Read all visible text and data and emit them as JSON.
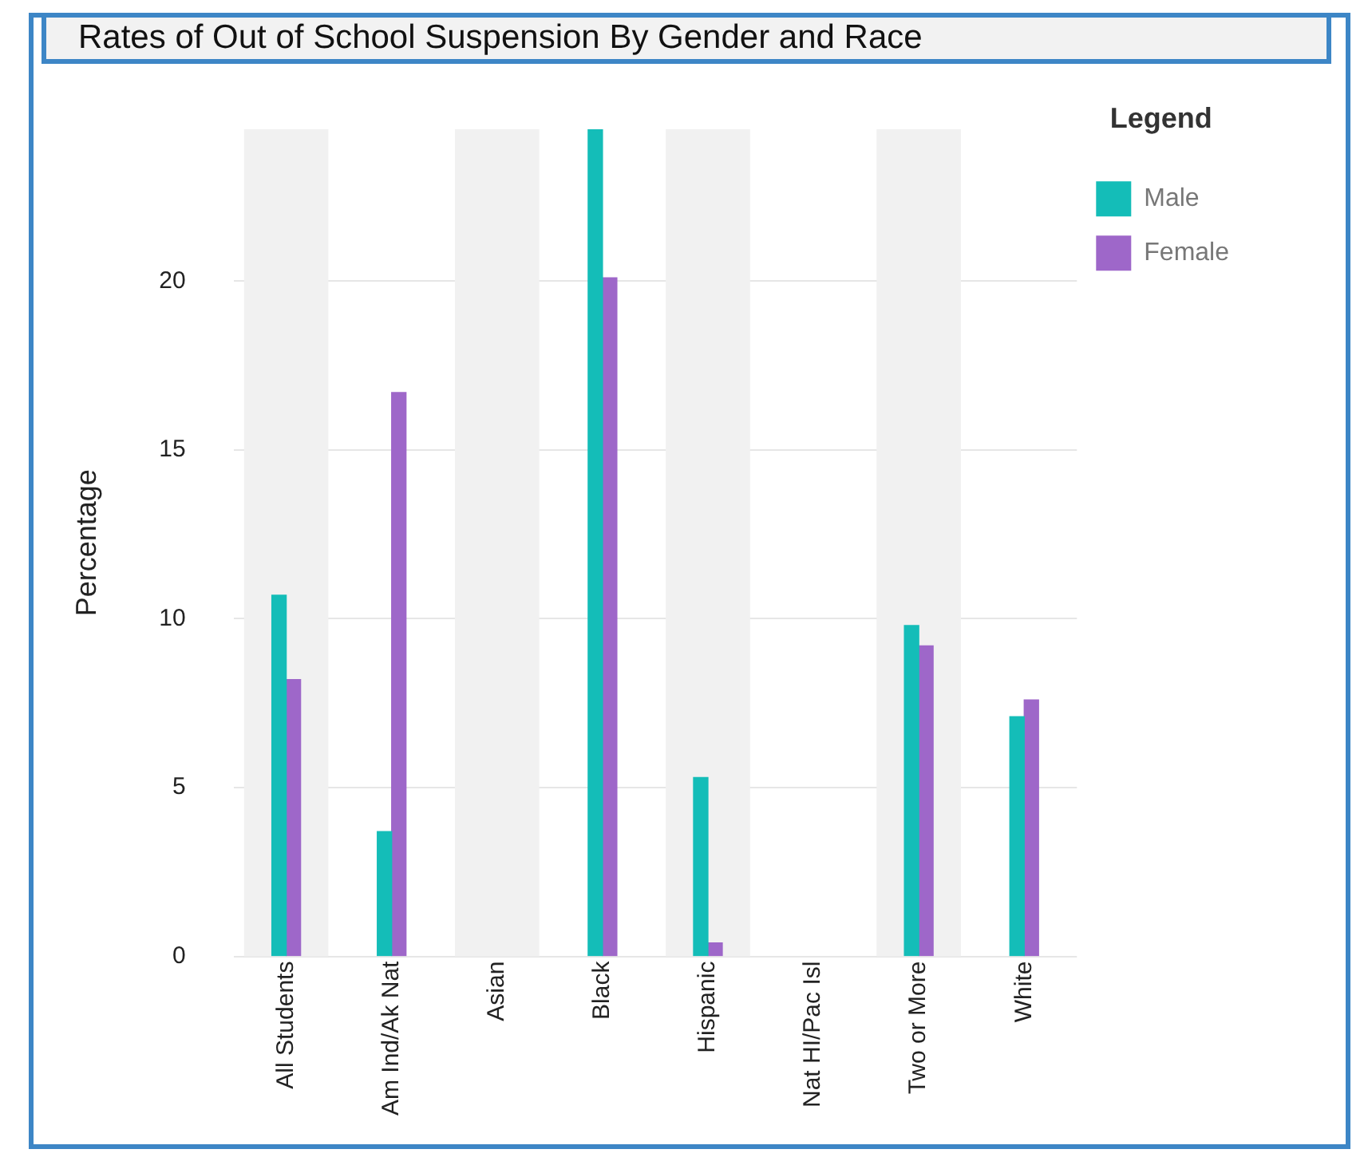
{
  "chart_data": {
    "type": "bar",
    "title": "Rates of Out of School Suspension By Gender and Race",
    "ylabel": "Percentage",
    "legend_title": "Legend",
    "categories": [
      "All Students",
      "Am Ind/Ak Nat",
      "Asian",
      "Black",
      "Hispanic",
      "Nat HI/Pac Isl",
      "Two or More",
      "White"
    ],
    "series": [
      {
        "name": "Male",
        "color": "#14bdb8",
        "values": [
          10.7,
          3.7,
          null,
          24.5,
          5.3,
          null,
          9.8,
          7.1
        ]
      },
      {
        "name": "Female",
        "color": "#9e67c9",
        "values": [
          8.2,
          16.7,
          null,
          20.1,
          0.4,
          null,
          9.2,
          7.6
        ]
      }
    ],
    "bands": [
      {
        "axis": "x",
        "from": "All Students",
        "to": "All Students",
        "color": "#f1f1f1"
      },
      {
        "axis": "x",
        "from": "Asian",
        "to": "Asian",
        "color": "#f1f1f1"
      },
      {
        "axis": "x",
        "from": "Hispanic",
        "to": "Hispanic",
        "color": "#f1f1f1"
      },
      {
        "axis": "x",
        "from": "Two or More",
        "to": "Two or More",
        "color": "#f1f1f1"
      }
    ],
    "ylim": [
      0,
      24.5
    ],
    "yticks": [
      0,
      5,
      10,
      15,
      20
    ],
    "grid": "y",
    "legend": "top right"
  }
}
